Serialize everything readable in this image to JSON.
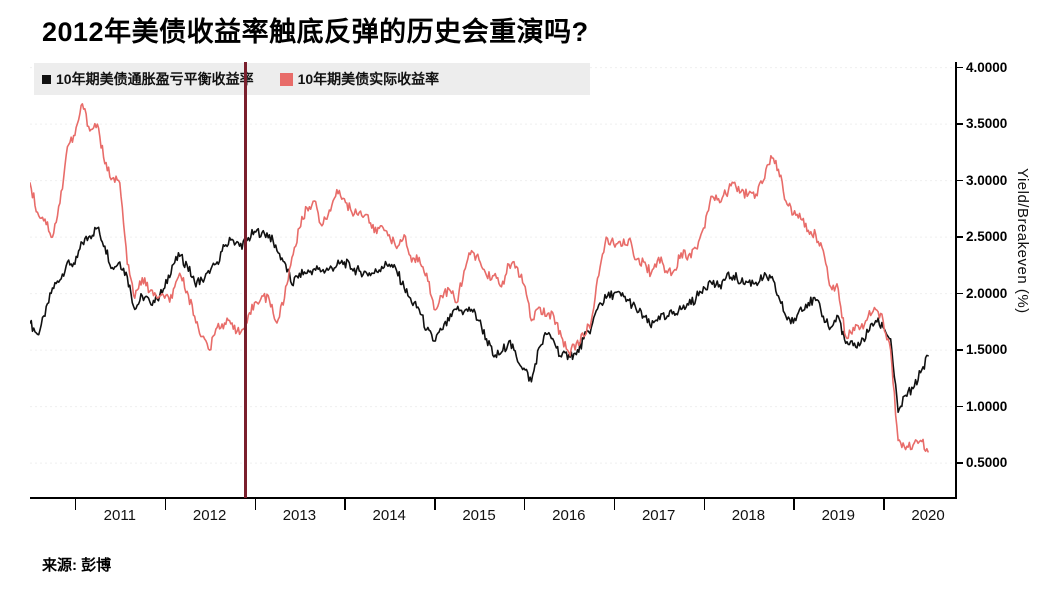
{
  "page": {
    "title": "2012年美债收益率触底反弹的历史会重演吗?",
    "source_label": "来源: 彭博"
  },
  "chart_data": {
    "type": "line",
    "title": "2012年美债收益率触底反弹的历史会重演吗?",
    "ylabel_right": "Yield/Breakeven (%)",
    "source": "来源: 彭博",
    "grid": "faint-dotted-horizontal",
    "legend_position": "top-left",
    "xlim": [
      2010.5,
      2020.8
    ],
    "ylim": [
      0.2,
      4.05
    ],
    "x_axis": {
      "years": [
        2011,
        2012,
        2013,
        2014,
        2015,
        2016,
        2017,
        2018,
        2019,
        2020
      ]
    },
    "y_axis": {
      "ticks": [
        4.0,
        3.5,
        3.0,
        2.5,
        2.0,
        1.5,
        1.0,
        0.5
      ],
      "labels": [
        "4.0000",
        "3.5000",
        "3.0000",
        "2.5000",
        "2.0000",
        "1.5000",
        "1.0000",
        "0.5000"
      ]
    },
    "event_line": {
      "x": 2012.9,
      "color": "#7a1f2d"
    },
    "legend": [
      {
        "label": "10年期美债通胀盈亏平衡收益率",
        "color": "#111111"
      },
      {
        "label": "10年期美债实际收益率",
        "color": "#e86c69"
      }
    ],
    "series": [
      {
        "name": "10年期美债通胀盈亏平衡收益率",
        "color": "#111111",
        "x_unit": "decimal_year_monthly",
        "x_start": 2010.5,
        "x_step": 0.083333,
        "values": [
          1.74,
          1.64,
          1.8,
          2.05,
          2.12,
          2.28,
          2.26,
          2.45,
          2.51,
          2.58,
          2.42,
          2.23,
          2.28,
          2.15,
          1.86,
          1.98,
          1.93,
          1.95,
          2.05,
          2.25,
          2.33,
          2.25,
          2.1,
          2.12,
          2.18,
          2.28,
          2.42,
          2.48,
          2.42,
          2.47,
          2.55,
          2.54,
          2.52,
          2.38,
          2.28,
          2.08,
          2.18,
          2.18,
          2.22,
          2.2,
          2.22,
          2.25,
          2.28,
          2.22,
          2.2,
          2.18,
          2.18,
          2.24,
          2.26,
          2.2,
          2.05,
          1.92,
          1.86,
          1.68,
          1.58,
          1.68,
          1.76,
          1.86,
          1.84,
          1.86,
          1.76,
          1.6,
          1.44,
          1.48,
          1.58,
          1.44,
          1.34,
          1.22,
          1.52,
          1.64,
          1.58,
          1.44,
          1.46,
          1.46,
          1.6,
          1.7,
          1.9,
          1.96,
          2.0,
          1.98,
          1.94,
          1.86,
          1.8,
          1.7,
          1.8,
          1.78,
          1.84,
          1.86,
          1.9,
          1.96,
          2.06,
          2.1,
          2.06,
          2.14,
          2.16,
          2.1,
          2.1,
          2.1,
          2.14,
          2.14,
          1.98,
          1.8,
          1.74,
          1.88,
          1.92,
          1.94,
          1.8,
          1.7,
          1.8,
          1.56,
          1.54,
          1.56,
          1.66,
          1.76,
          1.7,
          1.6,
          0.95,
          1.1,
          1.16,
          1.3,
          1.45
        ]
      },
      {
        "name": "10年期美债实际收益率",
        "color": "#e86c69",
        "x_unit": "decimal_year_monthly",
        "x_start": 2010.5,
        "x_step": 0.083333,
        "values": [
          2.98,
          2.72,
          2.66,
          2.5,
          2.8,
          3.3,
          3.4,
          3.68,
          3.44,
          3.5,
          3.15,
          3.02,
          2.98,
          2.26,
          1.96,
          2.14,
          2.02,
          1.96,
          1.96,
          1.96,
          2.18,
          2.02,
          1.8,
          1.62,
          1.5,
          1.7,
          1.74,
          1.74,
          1.64,
          1.74,
          1.92,
          1.98,
          1.94,
          1.74,
          1.96,
          2.32,
          2.58,
          2.76,
          2.82,
          2.6,
          2.74,
          2.92,
          2.84,
          2.72,
          2.72,
          2.7,
          2.54,
          2.6,
          2.52,
          2.4,
          2.52,
          2.28,
          2.32,
          2.18,
          1.86,
          1.98,
          2.04,
          1.92,
          2.2,
          2.38,
          2.3,
          2.16,
          2.16,
          2.06,
          2.26,
          2.24,
          2.08,
          1.76,
          1.88,
          1.8,
          1.8,
          1.62,
          1.48,
          1.56,
          1.62,
          1.76,
          2.16,
          2.5,
          2.44,
          2.42,
          2.48,
          2.3,
          2.28,
          2.18,
          2.32,
          2.2,
          2.2,
          2.36,
          2.34,
          2.4,
          2.58,
          2.86,
          2.84,
          2.88,
          2.98,
          2.9,
          2.88,
          2.88,
          3.0,
          3.22,
          3.1,
          2.82,
          2.7,
          2.66,
          2.56,
          2.52,
          2.38,
          2.06,
          2.04,
          1.62,
          1.7,
          1.7,
          1.8,
          1.86,
          1.76,
          1.5,
          0.7,
          0.62,
          0.66,
          0.7,
          0.6
        ]
      }
    ]
  }
}
